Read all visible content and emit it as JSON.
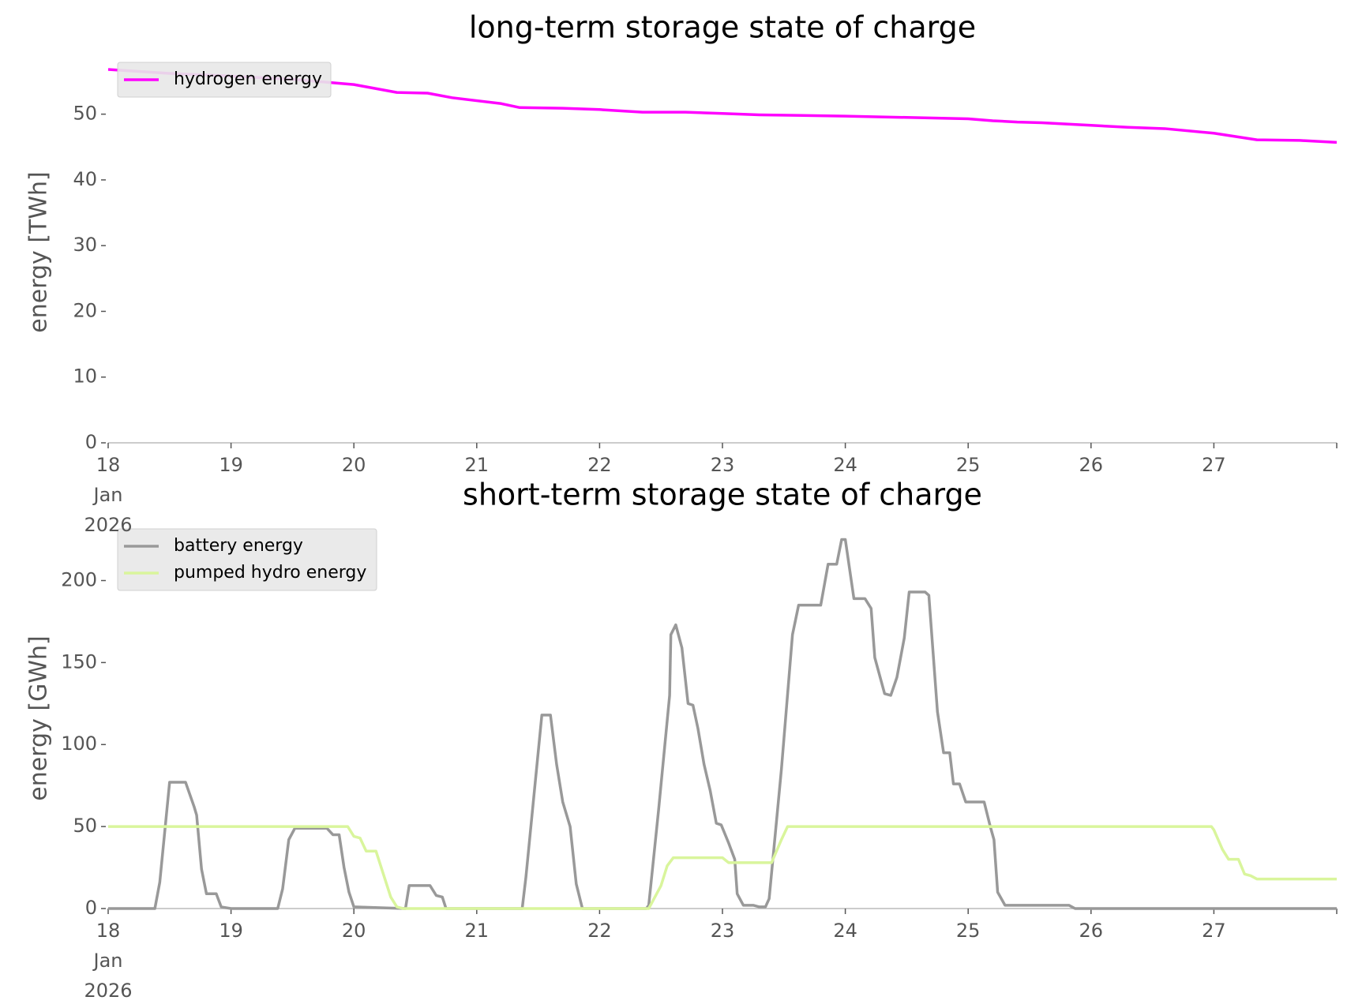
{
  "chart_data": [
    {
      "type": "line",
      "title": "long-term storage state of charge",
      "ylabel": "energy [TWh]",
      "xlim": [
        18,
        28
      ],
      "xticks": [
        {
          "value": 18,
          "label": "18\nJan\n2026"
        },
        19,
        20,
        21,
        22,
        23,
        24,
        25,
        26,
        27
      ],
      "ylim": [
        0,
        58
      ],
      "yticks": [
        0,
        10,
        20,
        30,
        40,
        50
      ],
      "legend": "upper left",
      "series": [
        {
          "name": "hydrogen energy",
          "color": "#ff00ff",
          "x": [
            18,
            18.5,
            19,
            19.5,
            20,
            20.35,
            20.6,
            20.8,
            21.2,
            21.35,
            21.7,
            22,
            22.35,
            22.7,
            23,
            23.3,
            24,
            24.5,
            25,
            25.2,
            25.4,
            25.6,
            26,
            26.3,
            26.6,
            27,
            27.35,
            27.7,
            28
          ],
          "values": [
            56.8,
            56.2,
            55.8,
            55.3,
            54.5,
            53.3,
            53.2,
            52.5,
            51.6,
            51.0,
            50.9,
            50.7,
            50.3,
            50.3,
            50.1,
            49.9,
            49.7,
            49.5,
            49.3,
            49.0,
            48.8,
            48.7,
            48.3,
            48.0,
            47.8,
            47.1,
            46.1,
            46.0,
            45.7
          ]
        }
      ]
    },
    {
      "type": "line",
      "title": "short-term storage state of charge",
      "ylabel": "energy [GWh]",
      "xlim": [
        18,
        28
      ],
      "xticks": [
        {
          "value": 18,
          "label": "18\nJan\n2026"
        },
        19,
        20,
        21,
        22,
        23,
        24,
        25,
        26,
        27
      ],
      "ylim": [
        0,
        232
      ],
      "yticks": [
        0,
        50,
        100,
        150,
        200
      ],
      "legend": "upper left",
      "series": [
        {
          "name": "battery energy",
          "color": "#999999",
          "x": [
            18,
            18.38,
            18.42,
            18.5,
            18.63,
            18.7,
            18.72,
            18.76,
            18.8,
            18.88,
            18.92,
            19,
            19.38,
            19.42,
            19.47,
            19.52,
            19.78,
            19.83,
            19.88,
            19.92,
            19.96,
            20,
            20.42,
            20.45,
            20.62,
            20.67,
            20.72,
            20.75,
            21.37,
            21.4,
            21.53,
            21.6,
            21.65,
            21.7,
            21.76,
            21.81,
            21.86,
            22.38,
            22.4,
            22.48,
            22.57,
            22.58,
            22.62,
            22.67,
            22.72,
            22.76,
            22.8,
            22.85,
            22.9,
            22.95,
            22.99,
            23.05,
            23.1,
            23.12,
            23.17,
            23.25,
            23.3,
            23.35,
            23.38,
            23.48,
            23.57,
            23.62,
            23.8,
            23.86,
            23.93,
            23.97,
            24.0,
            24.07,
            24.16,
            24.21,
            24.24,
            24.32,
            24.37,
            24.42,
            24.48,
            24.52,
            24.65,
            24.68,
            24.75,
            24.8,
            24.85,
            24.88,
            24.93,
            24.98,
            25.13,
            25.18,
            25.21,
            25.24,
            25.3,
            25.82,
            25.87,
            28
          ],
          "values": [
            0,
            0,
            16,
            77,
            77,
            62,
            57,
            24,
            9,
            9,
            1,
            0,
            0,
            12,
            42,
            49,
            49,
            45,
            45,
            25,
            10,
            1,
            0,
            14,
            14,
            8,
            7,
            0,
            0,
            19,
            118,
            118,
            88,
            65,
            50,
            15,
            0,
            0,
            2,
            60,
            130,
            167,
            173,
            159,
            125,
            124,
            110,
            88,
            72,
            52,
            51,
            40,
            30,
            9,
            2,
            2,
            1,
            1,
            6,
            85,
            167,
            185,
            185,
            210,
            210,
            225,
            225,
            189,
            189,
            183,
            153,
            131,
            130,
            141,
            165,
            193,
            193,
            191,
            120,
            95,
            95,
            76,
            76,
            65,
            65,
            50,
            42,
            10,
            2,
            2,
            0,
            0
          ]
        },
        {
          "name": "pumped hydro energy",
          "color": "#d9f59c",
          "x": [
            18,
            19.95,
            20,
            20.05,
            20.1,
            20.18,
            20.3,
            20.35,
            20.4,
            22.4,
            22.5,
            22.55,
            22.6,
            23.0,
            23.05,
            23.4,
            23.48,
            23.53,
            26.98,
            27,
            27.07,
            27.12,
            27.2,
            27.25,
            27.3,
            27.35,
            28
          ],
          "values": [
            50,
            50,
            44,
            43,
            35,
            35,
            7,
            1,
            0,
            0,
            14,
            26,
            31,
            31,
            28,
            28,
            42,
            50,
            50,
            48,
            36,
            30,
            30,
            21,
            20,
            18,
            18
          ]
        }
      ]
    }
  ]
}
